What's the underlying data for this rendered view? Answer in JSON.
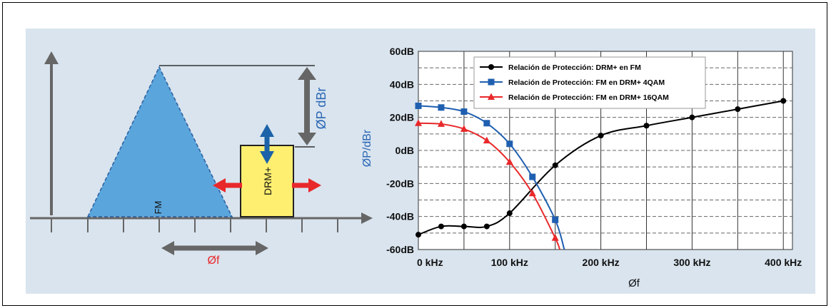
{
  "diagram": {
    "fm_label": "FM",
    "drm_label": "DRM+",
    "delta_p_label": "ØP dBr",
    "delta_f_label": "Øf",
    "colors": {
      "triangle": "#5aa5dc",
      "box": "#ffef70",
      "arrow_red": "#e8282a",
      "arrow_blue": "#1b62a8",
      "arrow_gray": "#555555",
      "accent_blue": "#2a66b5"
    }
  },
  "chart_data": {
    "type": "line",
    "ylabel": "ØP/dBr",
    "xlabel": "Øf",
    "xlim": [
      0,
      410
    ],
    "ylim": [
      -60,
      60
    ],
    "x_ticks": [
      0,
      100,
      200,
      300,
      400
    ],
    "x_tick_labels": [
      "0 kHz",
      "100 kHz",
      "200 kHz",
      "300 kHz",
      "400 kHz"
    ],
    "y_ticks": [
      60,
      40,
      20,
      0,
      -20,
      -40,
      -60
    ],
    "y_tick_labels": [
      "60dB",
      "40dB",
      "20dB",
      "0dB",
      "-20dB",
      "-40dB",
      "-60dB"
    ],
    "grid": true,
    "legend_position": "top-left",
    "series": [
      {
        "name": "Relación de Protección: DRM+ en FM",
        "color": "#000000",
        "marker": "circle",
        "points": [
          [
            0,
            -51
          ],
          [
            25,
            -46
          ],
          [
            50,
            -46
          ],
          [
            75,
            -46
          ],
          [
            100,
            -38
          ],
          [
            150,
            -9
          ],
          [
            200,
            9
          ],
          [
            250,
            15
          ],
          [
            300,
            20
          ],
          [
            350,
            25
          ],
          [
            400,
            30
          ]
        ]
      },
      {
        "name": "Relación de Protección: FM en DRM+ 4QAM",
        "color": "#1f5fb0",
        "marker": "square",
        "points": [
          [
            0,
            27
          ],
          [
            25,
            26
          ],
          [
            50,
            23.5
          ],
          [
            75,
            16.5
          ],
          [
            100,
            4
          ],
          [
            125,
            -16
          ],
          [
            150,
            -42
          ],
          [
            160,
            -60
          ]
        ]
      },
      {
        "name": "Relación de Protección: FM en DRM+ 16QAM",
        "color": "#e8282a",
        "marker": "triangle",
        "points": [
          [
            0,
            16.5
          ],
          [
            25,
            16
          ],
          [
            50,
            13
          ],
          [
            75,
            6
          ],
          [
            100,
            -7
          ],
          [
            125,
            -26
          ],
          [
            150,
            -53
          ],
          [
            155,
            -60
          ]
        ]
      }
    ]
  }
}
